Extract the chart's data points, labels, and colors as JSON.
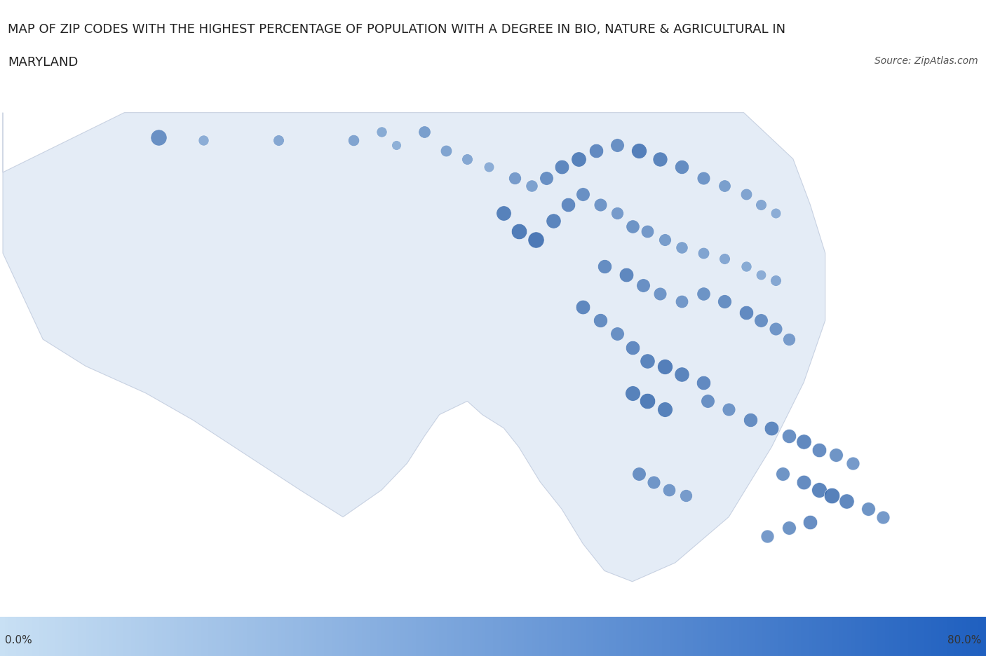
{
  "title_line1": "MAP OF ZIP CODES WITH THE HIGHEST PERCENTAGE OF POPULATION WITH A DEGREE IN BIO, NATURE & AGRICULTURAL IN",
  "title_line2": "MARYLAND",
  "source_text": "Source: ZipAtlas.com",
  "colorbar_min_label": "0.0%",
  "colorbar_max_label": "80.0%",
  "title_fontsize": 13,
  "source_fontsize": 10,
  "colorbar_label_fontsize": 11,
  "dot_color_low": "#a8c8e8",
  "dot_color_high": "#1a52a0",
  "colorbar_color_low": "#c8e0f4",
  "colorbar_color_high": "#2060c0",
  "fig_width": 14.06,
  "fig_height": 9.37,
  "map_extent": [
    -79.5,
    -74.9,
    37.85,
    39.85
  ],
  "tile_zoom": 8,
  "maryland_fill_color": "#b8cfe8",
  "maryland_fill_alpha": 0.38,
  "maryland_edge_color": "#8899bb",
  "maryland_edge_width": 0.8,
  "dots": [
    {
      "lon": -78.76,
      "lat": 39.63,
      "value": 55,
      "size": 280
    },
    {
      "lon": -78.55,
      "lat": 39.62,
      "value": 30,
      "size": 120
    },
    {
      "lon": -78.2,
      "lat": 39.62,
      "value": 35,
      "size": 130
    },
    {
      "lon": -77.85,
      "lat": 39.62,
      "value": 38,
      "size": 140
    },
    {
      "lon": -77.72,
      "lat": 39.65,
      "value": 32,
      "size": 120
    },
    {
      "lon": -77.65,
      "lat": 39.6,
      "value": 28,
      "size": 100
    },
    {
      "lon": -77.52,
      "lat": 39.65,
      "value": 42,
      "size": 160
    },
    {
      "lon": -77.42,
      "lat": 39.58,
      "value": 38,
      "size": 145
    },
    {
      "lon": -77.32,
      "lat": 39.55,
      "value": 35,
      "size": 130
    },
    {
      "lon": -77.22,
      "lat": 39.52,
      "value": 30,
      "size": 115
    },
    {
      "lon": -77.1,
      "lat": 39.48,
      "value": 45,
      "size": 170
    },
    {
      "lon": -77.02,
      "lat": 39.45,
      "value": 40,
      "size": 155
    },
    {
      "lon": -76.95,
      "lat": 39.48,
      "value": 55,
      "size": 200
    },
    {
      "lon": -76.88,
      "lat": 39.52,
      "value": 62,
      "size": 220
    },
    {
      "lon": -76.8,
      "lat": 39.55,
      "value": 68,
      "size": 240
    },
    {
      "lon": -76.72,
      "lat": 39.58,
      "value": 60,
      "size": 215
    },
    {
      "lon": -76.62,
      "lat": 39.6,
      "value": 55,
      "size": 200
    },
    {
      "lon": -76.52,
      "lat": 39.58,
      "value": 70,
      "size": 250
    },
    {
      "lon": -76.42,
      "lat": 39.55,
      "value": 65,
      "size": 230
    },
    {
      "lon": -76.32,
      "lat": 39.52,
      "value": 58,
      "size": 210
    },
    {
      "lon": -76.22,
      "lat": 39.48,
      "value": 50,
      "size": 185
    },
    {
      "lon": -76.12,
      "lat": 39.45,
      "value": 42,
      "size": 160
    },
    {
      "lon": -76.02,
      "lat": 39.42,
      "value": 38,
      "size": 145
    },
    {
      "lon": -75.95,
      "lat": 39.38,
      "value": 35,
      "size": 130
    },
    {
      "lon": -75.88,
      "lat": 39.35,
      "value": 30,
      "size": 115
    },
    {
      "lon": -77.15,
      "lat": 39.35,
      "value": 68,
      "size": 240
    },
    {
      "lon": -77.08,
      "lat": 39.28,
      "value": 72,
      "size": 260
    },
    {
      "lon": -77.0,
      "lat": 39.25,
      "value": 75,
      "size": 280
    },
    {
      "lon": -76.92,
      "lat": 39.32,
      "value": 65,
      "size": 235
    },
    {
      "lon": -76.85,
      "lat": 39.38,
      "value": 60,
      "size": 215
    },
    {
      "lon": -76.78,
      "lat": 39.42,
      "value": 55,
      "size": 200
    },
    {
      "lon": -76.7,
      "lat": 39.38,
      "value": 50,
      "size": 185
    },
    {
      "lon": -76.62,
      "lat": 39.35,
      "value": 45,
      "size": 170
    },
    {
      "lon": -76.55,
      "lat": 39.3,
      "value": 52,
      "size": 195
    },
    {
      "lon": -76.48,
      "lat": 39.28,
      "value": 48,
      "size": 180
    },
    {
      "lon": -76.4,
      "lat": 39.25,
      "value": 44,
      "size": 165
    },
    {
      "lon": -76.32,
      "lat": 39.22,
      "value": 40,
      "size": 155
    },
    {
      "lon": -76.22,
      "lat": 39.2,
      "value": 38,
      "size": 145
    },
    {
      "lon": -76.12,
      "lat": 39.18,
      "value": 35,
      "size": 130
    },
    {
      "lon": -76.02,
      "lat": 39.15,
      "value": 32,
      "size": 120
    },
    {
      "lon": -75.95,
      "lat": 39.12,
      "value": 30,
      "size": 112
    },
    {
      "lon": -75.88,
      "lat": 39.1,
      "value": 35,
      "size": 130
    },
    {
      "lon": -76.68,
      "lat": 39.15,
      "value": 58,
      "size": 210
    },
    {
      "lon": -76.58,
      "lat": 39.12,
      "value": 62,
      "size": 220
    },
    {
      "lon": -76.5,
      "lat": 39.08,
      "value": 55,
      "size": 200
    },
    {
      "lon": -76.42,
      "lat": 39.05,
      "value": 50,
      "size": 185
    },
    {
      "lon": -76.32,
      "lat": 39.02,
      "value": 48,
      "size": 180
    },
    {
      "lon": -76.22,
      "lat": 39.05,
      "value": 52,
      "size": 195
    },
    {
      "lon": -76.12,
      "lat": 39.02,
      "value": 56,
      "size": 205
    },
    {
      "lon": -76.02,
      "lat": 38.98,
      "value": 60,
      "size": 215
    },
    {
      "lon": -75.95,
      "lat": 38.95,
      "value": 55,
      "size": 200
    },
    {
      "lon": -75.88,
      "lat": 38.92,
      "value": 50,
      "size": 185
    },
    {
      "lon": -75.82,
      "lat": 38.88,
      "value": 45,
      "size": 170
    },
    {
      "lon": -76.78,
      "lat": 39.0,
      "value": 62,
      "size": 220
    },
    {
      "lon": -76.7,
      "lat": 38.95,
      "value": 58,
      "size": 210
    },
    {
      "lon": -76.62,
      "lat": 38.9,
      "value": 55,
      "size": 200
    },
    {
      "lon": -76.55,
      "lat": 38.85,
      "value": 60,
      "size": 215
    },
    {
      "lon": -76.48,
      "lat": 38.8,
      "value": 65,
      "size": 235
    },
    {
      "lon": -76.4,
      "lat": 38.78,
      "value": 70,
      "size": 250
    },
    {
      "lon": -76.32,
      "lat": 38.75,
      "value": 65,
      "size": 235
    },
    {
      "lon": -76.22,
      "lat": 38.72,
      "value": 60,
      "size": 215
    },
    {
      "lon": -76.55,
      "lat": 38.68,
      "value": 68,
      "size": 245
    },
    {
      "lon": -76.48,
      "lat": 38.65,
      "value": 72,
      "size": 260
    },
    {
      "lon": -76.4,
      "lat": 38.62,
      "value": 68,
      "size": 245
    },
    {
      "lon": -76.2,
      "lat": 38.65,
      "value": 55,
      "size": 200
    },
    {
      "lon": -76.1,
      "lat": 38.62,
      "value": 50,
      "size": 185
    },
    {
      "lon": -76.0,
      "lat": 38.58,
      "value": 58,
      "size": 210
    },
    {
      "lon": -75.9,
      "lat": 38.55,
      "value": 62,
      "size": 220
    },
    {
      "lon": -75.82,
      "lat": 38.52,
      "value": 58,
      "size": 210
    },
    {
      "lon": -75.75,
      "lat": 38.5,
      "value": 65,
      "size": 235
    },
    {
      "lon": -75.68,
      "lat": 38.47,
      "value": 60,
      "size": 215
    },
    {
      "lon": -75.6,
      "lat": 38.45,
      "value": 55,
      "size": 200
    },
    {
      "lon": -75.52,
      "lat": 38.42,
      "value": 50,
      "size": 185
    },
    {
      "lon": -75.85,
      "lat": 38.38,
      "value": 55,
      "size": 200
    },
    {
      "lon": -75.75,
      "lat": 38.35,
      "value": 62,
      "size": 220
    },
    {
      "lon": -75.68,
      "lat": 38.32,
      "value": 68,
      "size": 245
    },
    {
      "lon": -75.62,
      "lat": 38.3,
      "value": 72,
      "size": 260
    },
    {
      "lon": -75.55,
      "lat": 38.28,
      "value": 65,
      "size": 235
    },
    {
      "lon": -75.45,
      "lat": 38.25,
      "value": 55,
      "size": 200
    },
    {
      "lon": -75.38,
      "lat": 38.22,
      "value": 50,
      "size": 185
    },
    {
      "lon": -75.72,
      "lat": 38.2,
      "value": 60,
      "size": 215
    },
    {
      "lon": -75.82,
      "lat": 38.18,
      "value": 55,
      "size": 200
    },
    {
      "lon": -75.92,
      "lat": 38.15,
      "value": 50,
      "size": 185
    },
    {
      "lon": -76.52,
      "lat": 38.38,
      "value": 55,
      "size": 200
    },
    {
      "lon": -76.45,
      "lat": 38.35,
      "value": 50,
      "size": 185
    },
    {
      "lon": -76.38,
      "lat": 38.32,
      "value": 48,
      "size": 178
    },
    {
      "lon": -76.3,
      "lat": 38.3,
      "value": 45,
      "size": 170
    }
  ]
}
